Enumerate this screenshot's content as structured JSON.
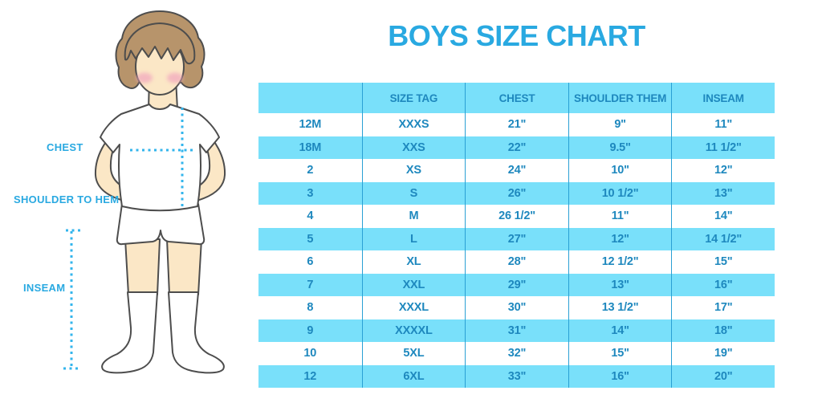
{
  "page": {
    "title": "BOYS SIZE CHART"
  },
  "colors": {
    "accent_blue": "#29A9E1",
    "table_text_blue": "#1E88BE",
    "band_cyan": "#79E0FA",
    "grid_line_blue": "#2AA0D4",
    "dotted_line_blue": "#33B5EC",
    "skin": "#FBE7C6",
    "hair_brown": "#B7946B",
    "outline_gray": "#4D4D4D",
    "blush_pink": "#F2A9BE"
  },
  "diagram": {
    "labels": {
      "chest": "CHEST",
      "shoulder_to_hem": "SHOULDER TO HEM",
      "inseam": "INSEAM"
    }
  },
  "chart_data": {
    "type": "table",
    "title": "BOYS SIZE CHART",
    "columns": [
      "",
      "SIZE TAG",
      "CHEST",
      "SHOULDER THEM",
      "INSEAM"
    ],
    "rows": [
      [
        "12M",
        "XXXS",
        "21\"",
        "9\"",
        "11\""
      ],
      [
        "18M",
        "XXS",
        "22\"",
        "9.5\"",
        "11 1/2\""
      ],
      [
        "2",
        "XS",
        "24\"",
        "10\"",
        "12\""
      ],
      [
        "3",
        "S",
        "26\"",
        "10 1/2\"",
        "13\""
      ],
      [
        "4",
        "M",
        "26 1/2\"",
        "11\"",
        "14\""
      ],
      [
        "5",
        "L",
        "27\"",
        "12\"",
        "14 1/2\""
      ],
      [
        "6",
        "XL",
        "28\"",
        "12 1/2\"",
        "15\""
      ],
      [
        "7",
        "XXL",
        "29\"",
        "13\"",
        "16\""
      ],
      [
        "8",
        "XXXL",
        "30\"",
        "13 1/2\"",
        "17\""
      ],
      [
        "9",
        "XXXXL",
        "31\"",
        "14\"",
        "18\""
      ],
      [
        "10",
        "5XL",
        "32\"",
        "15\"",
        "19\""
      ],
      [
        "12",
        "6XL",
        "33\"",
        "16\"",
        "20\""
      ]
    ]
  }
}
